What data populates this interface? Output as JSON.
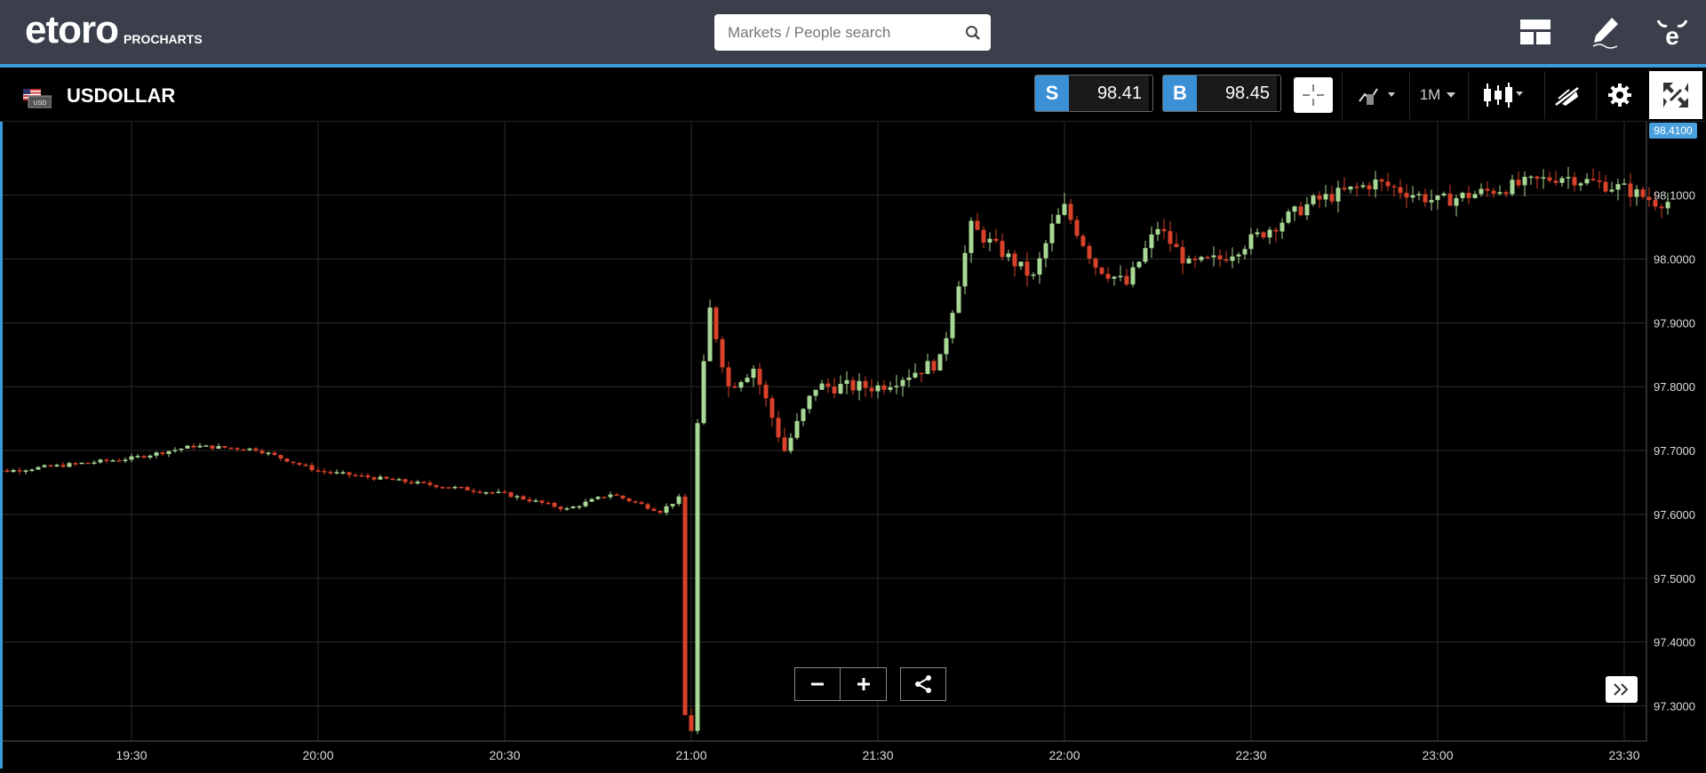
{
  "app": {
    "logo": "etoro",
    "product": "PROCHARTS"
  },
  "search": {
    "placeholder": "Markets / People search"
  },
  "instrument": {
    "symbol": "USDOLLAR",
    "flag_label": "USD"
  },
  "trade": {
    "sell_tag": "S",
    "sell_price": "98.41",
    "buy_tag": "B",
    "buy_price": "98.45"
  },
  "toolbar": {
    "timeframe": "1M"
  },
  "colors": {
    "accent": "#3b9ad9",
    "bull": "#a8d895",
    "bear": "#d8412a",
    "grid": "#2b2b2b",
    "price_label_bg": "#4aa0dc"
  },
  "icons": {
    "search": "search-icon",
    "layout": "layout-icon",
    "edit": "pencil-icon",
    "profile": "etoro-profile-icon",
    "crosshair": "crosshair-icon",
    "compare": "compare-icon",
    "candles": "candlestick-icon",
    "draw": "drawing-tools-icon",
    "settings": "gear-icon",
    "fullscreen": "expand-icon",
    "zoom_out": "minus-icon",
    "zoom_in": "plus-icon",
    "share": "share-icon",
    "scroll": "double-chevron-right-icon"
  },
  "chart_data": {
    "type": "candlestick",
    "x_ticks": [
      "19:30",
      "20:00",
      "20:30",
      "21:00",
      "21:30",
      "22:00",
      "22:30",
      "23:00",
      "23:30"
    ],
    "y_ticks": [
      "98.1000",
      "98.0000",
      "97.9000",
      "97.8000",
      "97.7000",
      "97.6000",
      "97.5000",
      "97.4000",
      "97.3000"
    ],
    "current_price": "98.4100",
    "ylim": [
      97.245,
      98.215
    ],
    "grid": true,
    "anchors": [
      [
        "19:10",
        97.668
      ],
      [
        "19:20",
        97.678
      ],
      [
        "19:30",
        97.688
      ],
      [
        "19:40",
        97.707
      ],
      [
        "19:50",
        97.702
      ],
      [
        "20:00",
        97.668
      ],
      [
        "20:15",
        97.65
      ],
      [
        "20:30",
        97.632
      ],
      [
        "20:40",
        97.608
      ],
      [
        "20:47",
        97.632
      ],
      [
        "20:55",
        97.605
      ],
      [
        "20:58",
        97.625
      ],
      [
        "20:59",
        97.285
      ],
      [
        "21:00",
        97.265
      ],
      [
        "21:01",
        97.74
      ],
      [
        "21:03",
        97.92
      ],
      [
        "21:06",
        97.8
      ],
      [
        "21:10",
        97.83
      ],
      [
        "21:15",
        97.7
      ],
      [
        "21:20",
        97.8
      ],
      [
        "21:30",
        97.8
      ],
      [
        "21:40",
        97.84
      ],
      [
        "21:45",
        98.05
      ],
      [
        "21:55",
        97.97
      ],
      [
        "21:58",
        98.05
      ],
      [
        "22:00",
        98.08
      ],
      [
        "22:05",
        97.99
      ],
      [
        "22:10",
        97.96
      ],
      [
        "22:15",
        98.05
      ],
      [
        "22:20",
        97.99
      ],
      [
        "22:25",
        98.0
      ],
      [
        "22:30",
        98.03
      ],
      [
        "22:40",
        98.09
      ],
      [
        "22:50",
        98.12
      ],
      [
        "23:00",
        98.09
      ],
      [
        "23:10",
        98.11
      ],
      [
        "23:20",
        98.13
      ],
      [
        "23:30",
        98.11
      ],
      [
        "23:35",
        98.09
      ]
    ]
  }
}
